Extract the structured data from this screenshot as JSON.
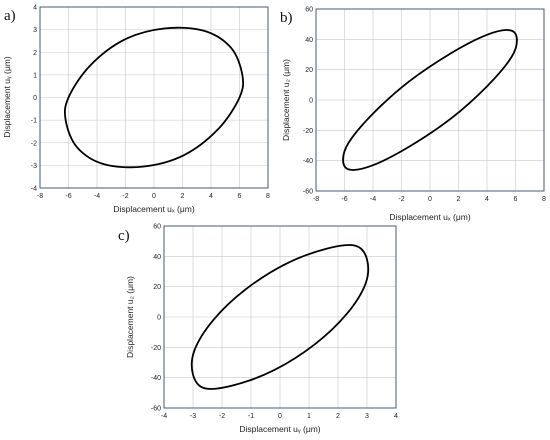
{
  "chart_data": [
    {
      "type": "line",
      "panel_label": "a)",
      "xlabel": "Displacement uₓ (μm)",
      "ylabel": "Displacement uᵧ (μm)",
      "xlim": [
        -8,
        8
      ],
      "ylim": [
        -4,
        4
      ],
      "xticks": [
        "-8",
        "-6",
        "-4",
        "-2",
        "0",
        "2",
        "4",
        "6",
        "8"
      ],
      "yticks": [
        "-4",
        "-3",
        "-2",
        "-1",
        "0",
        "1",
        "2",
        "3",
        "4"
      ],
      "grid": true,
      "series": [
        {
          "x": [
            6.2,
            5.4,
            3.5,
            0.7,
            -2.1,
            -4.5,
            -6.0,
            -6.2,
            -5.4,
            -3.5,
            -0.7,
            2.1,
            4.5,
            6.0,
            6.2
          ],
          "y": [
            1.0,
            2.2,
            2.95,
            3.05,
            2.55,
            1.4,
            0.0,
            -1.0,
            -2.2,
            -2.95,
            -3.05,
            -2.55,
            -1.4,
            0.0,
            1.0
          ]
        }
      ]
    },
    {
      "type": "line",
      "panel_label": "b)",
      "xlabel": "Displacement uₓ (μm)",
      "ylabel": "Displacement u₂ (μm)",
      "xlim": [
        -8,
        8
      ],
      "ylim": [
        -60,
        60
      ],
      "xticks": [
        "-8",
        "-6",
        "-4",
        "-2",
        "0",
        "2",
        "4",
        "6",
        "8"
      ],
      "yticks": [
        "-60",
        "-40",
        "-20",
        "0",
        "20",
        "40",
        "60"
      ],
      "grid": true,
      "series": [
        {
          "x": [
            6.1,
            5.6,
            4.0,
            1.5,
            -1.5,
            -4.0,
            -5.7,
            -6.1,
            -5.6,
            -4.0,
            -1.5,
            1.5,
            4.0,
            5.7,
            6.1
          ],
          "y": [
            40,
            46,
            43,
            31,
            12,
            -9,
            -28,
            -40,
            -46,
            -43,
            -31,
            -12,
            9,
            28,
            40
          ]
        }
      ]
    },
    {
      "type": "line",
      "panel_label": "c)",
      "xlabel": "Displacement uᵧ (μm)",
      "ylabel": "Displacement u₂ (μm)",
      "xlim": [
        -4,
        4
      ],
      "ylim": [
        -60,
        60
      ],
      "xticks": [
        "-4",
        "-3",
        "-2",
        "-1",
        "0",
        "1",
        "2",
        "3",
        "4"
      ],
      "yticks": [
        "-60",
        "-40",
        "-20",
        "0",
        "20",
        "40",
        "60"
      ],
      "grid": true,
      "series": [
        {
          "x": [
            3.0,
            2.6,
            1.6,
            0.2,
            -1.2,
            -2.3,
            -2.95,
            -3.0,
            -2.6,
            -1.6,
            -0.2,
            1.2,
            2.3,
            2.95,
            3.0
          ],
          "y": [
            38,
            47,
            45,
            35,
            18,
            -2,
            -22,
            -38,
            -47,
            -45,
            -35,
            -18,
            2,
            22,
            38
          ]
        }
      ]
    }
  ]
}
